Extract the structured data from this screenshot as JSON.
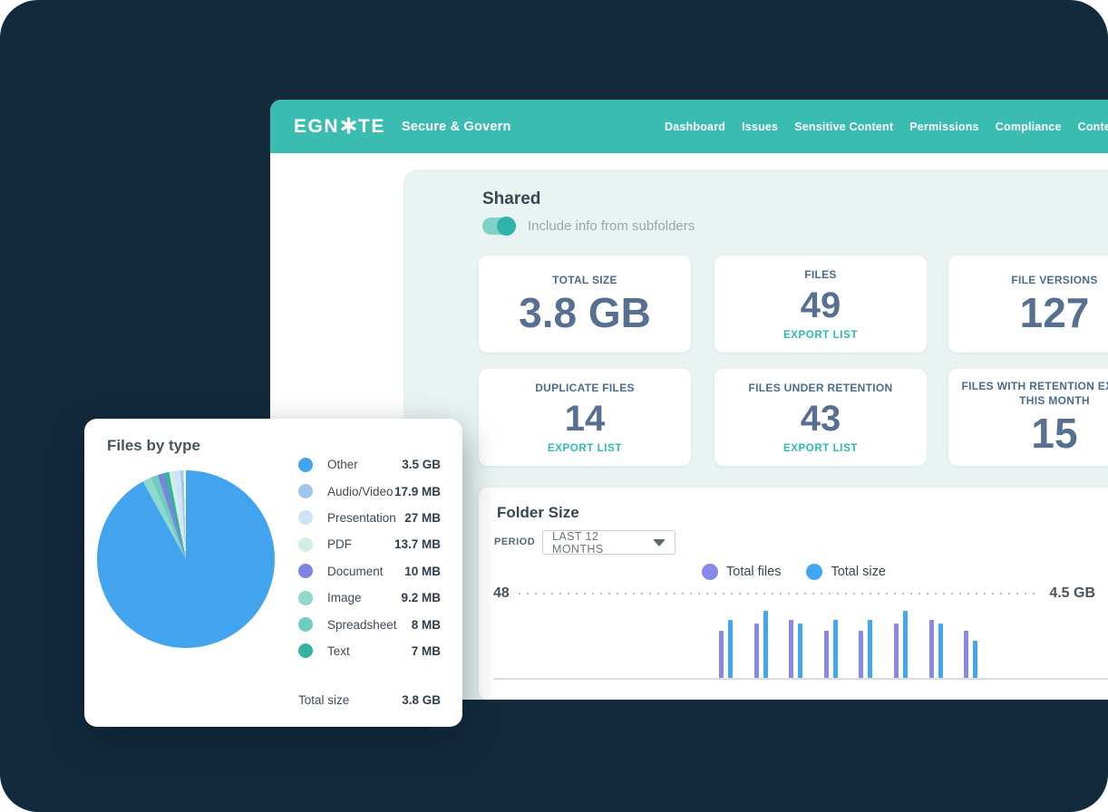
{
  "page": {
    "background": "#132a3d"
  },
  "header": {
    "logo_prefix": "EGN",
    "logo_suffix": "TE",
    "logo_mark": "asterisk-star",
    "product_name": "Secure & Govern",
    "nav": [
      "Dashboard",
      "Issues",
      "Sensitive Content",
      "Permissions",
      "Compliance",
      "Content Lifecycle"
    ],
    "accent_color": "#3abcb1"
  },
  "shared_panel": {
    "title": "Shared",
    "subfolder_toggle": {
      "label": "Include info from subfolders",
      "state": "on"
    }
  },
  "stat_cards": [
    {
      "label": "TOTAL SIZE",
      "value": "3.8 GB",
      "export_label": null
    },
    {
      "label": "FILES",
      "value": "49",
      "export_label": "EXPORT LIST"
    },
    {
      "label": "FILE VERSIONS",
      "value": "127",
      "export_label": null
    },
    {
      "label": "DUPLICATE FILES",
      "value": "14",
      "export_label": "EXPORT LIST"
    },
    {
      "label": "FILES UNDER RETENTION",
      "value": "43",
      "export_label": "EXPORT LIST"
    },
    {
      "label": "FILES WITH RETENTION EXPIRED THIS MONTH",
      "value": "15",
      "export_label": null
    }
  ],
  "folder_size": {
    "title": "Folder Size",
    "period_label": "PERIOD",
    "period_value": "LAST 12 MONTHS",
    "y_left": "48",
    "y_right": "4.5 GB"
  },
  "files_by_type": {
    "title": "Files by type",
    "total_label": "Total size",
    "total_value": "3.8 GB"
  },
  "chart_data": [
    {
      "id": "folder-size-bars",
      "type": "bar",
      "title": "Folder Size",
      "period": "LAST 12 MONTHS",
      "x_slots": 12,
      "axis": {
        "left_max_label": "48",
        "right_max_label": "4.5 GB",
        "files_max": 48,
        "size_max_gb": 4.5
      },
      "legend_position": "top-right",
      "grid": "dotted-top-line",
      "series": [
        {
          "name": "Total files",
          "color": "#8789e6",
          "max": 48,
          "values": [
            null,
            null,
            null,
            null,
            27,
            31,
            33,
            27,
            27,
            31,
            33,
            27
          ]
        },
        {
          "name": "Total size",
          "color": "#41a7f0",
          "max": 4.5,
          "unit": "GB",
          "values": [
            null,
            null,
            null,
            null,
            3.1,
            3.6,
            2.9,
            3.1,
            3.1,
            3.6,
            2.9,
            2.0
          ]
        }
      ]
    },
    {
      "id": "files-by-type-pie",
      "type": "pie",
      "title": "Files by type",
      "legend": [
        {
          "label": "Other",
          "value": "3.5 GB",
          "color": "#42a4ef"
        },
        {
          "label": "Audio/Video",
          "value": "17.9 MB",
          "color": "#a0c6ee"
        },
        {
          "label": "Presentation",
          "value": "27 MB",
          "color": "#cfe3f8"
        },
        {
          "label": "PDF",
          "value": "13.7 MB",
          "color": "#d2eee2"
        },
        {
          "label": "Document",
          "value": "10 MB",
          "color": "#7d82e3"
        },
        {
          "label": "Image",
          "value": "9.2 MB",
          "color": "#8fd8cd"
        },
        {
          "label": "Spreadsheet",
          "value": "8 MB",
          "color": "#6ecdbd"
        },
        {
          "label": "Text",
          "value": "7 MB",
          "color": "#36b2a0"
        }
      ],
      "total": {
        "label": "Total size",
        "value": "3.8 GB"
      },
      "segments_clockwise_from_top": [
        {
          "label": "Other",
          "color": "#42a4ef",
          "deg": 331
        },
        {
          "label": "Image",
          "color": "#8fd8cd",
          "deg": 6
        },
        {
          "label": "Spreadsheet",
          "color": "#6ecdbd",
          "deg": 4.5
        },
        {
          "label": "Document",
          "color": "#7d82e3",
          "deg": 4
        },
        {
          "label": "Text",
          "color": "#36b2a0",
          "deg": 3.5
        },
        {
          "label": "PDF",
          "color": "#d2eee2",
          "deg": 3.5
        },
        {
          "label": "Presentation",
          "color": "#cfe3f8",
          "deg": 4
        },
        {
          "label": "Audio/Video",
          "color": "#a0c6ee",
          "deg": 2
        },
        {
          "label": "separator",
          "color": "#ffffff",
          "deg": 1.5
        }
      ]
    }
  ]
}
